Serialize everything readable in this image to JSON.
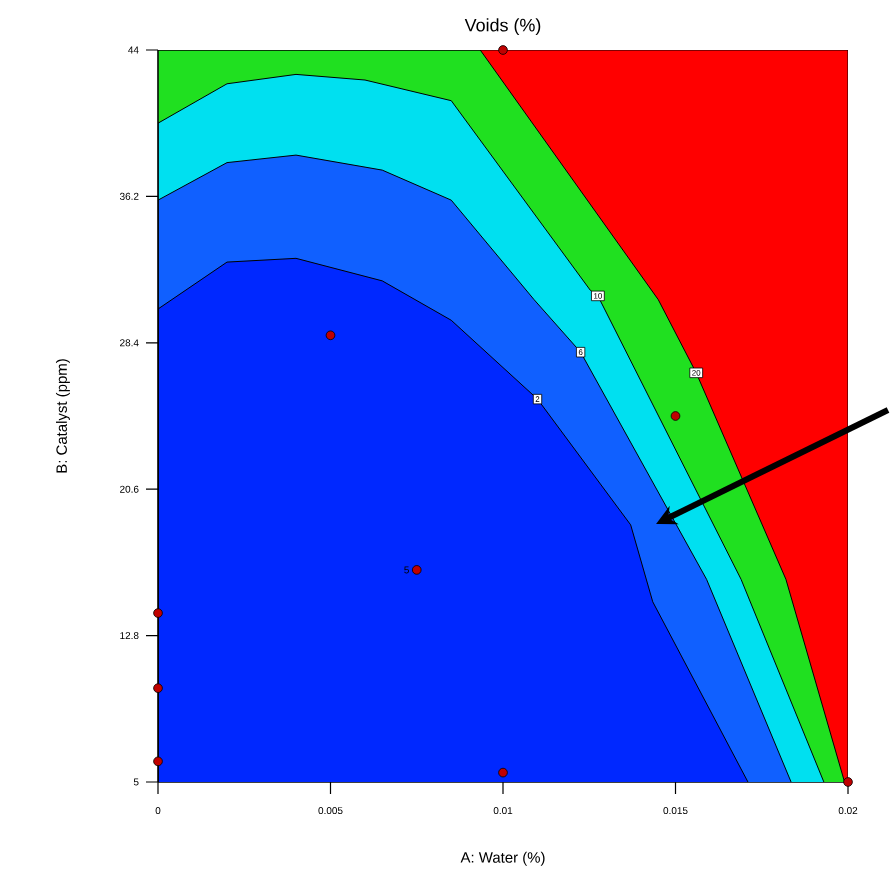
{
  "chart_data": {
    "type": "area",
    "title": "Voids (%)",
    "xlabel": "A: Water (%)",
    "ylabel": "B: Catalyst (ppm)",
    "xlim": [
      0,
      0.02
    ],
    "ylim": [
      5,
      44
    ],
    "xticks": [
      0,
      0.005,
      0.01,
      0.015,
      0.02
    ],
    "yticks": [
      5,
      12.8,
      20.6,
      28.4,
      36.2,
      44
    ],
    "grid": false,
    "series": [
      {
        "color": "#ff0000",
        "x": [
          0,
          0,
          0.02,
          0.02
        ],
        "values": [
          5,
          44,
          44,
          5
        ]
      },
      {
        "color": "#20e020",
        "x": [
          0,
          0,
          0.00934,
          0.0145,
          0.0156,
          0.0182,
          0.0199
        ],
        "values": [
          5,
          44,
          44,
          30.7,
          26.8,
          15.8,
          5
        ]
      },
      {
        "color": "#00e0f0",
        "x": [
          0,
          0,
          0.002,
          0.004,
          0.006,
          0.0085,
          0.01253,
          0.01275,
          0.0169,
          0.0193
        ],
        "values": [
          5,
          40.1,
          42.2,
          42.7,
          42.4,
          41.3,
          31.2,
          30.9,
          15.8,
          5
        ]
      },
      {
        "color": "#1060ff",
        "x": [
          0,
          0,
          0.002,
          0.004,
          0.0065,
          0.0085,
          0.0109,
          0.01225,
          0.0159,
          0.01835
        ],
        "values": [
          5,
          36.0,
          38.0,
          38.4,
          37.6,
          36.0,
          30.7,
          27.9,
          15.8,
          5
        ]
      },
      {
        "color": "#0028ff",
        "x": [
          0,
          0,
          0.002,
          0.004,
          0.0065,
          0.0085,
          0.011,
          0.0137,
          0.01434,
          0.0171
        ],
        "values": [
          5,
          30.2,
          32.7,
          32.9,
          31.7,
          29.6,
          25.4,
          18.7,
          14.6,
          5
        ]
      },
      {
        "type": "scatter",
        "color": "#c00000",
        "marker": "circle",
        "x": [
          0.01,
          0.005,
          0.0075,
          0.015,
          0,
          0,
          0,
          0.01,
          0.02
        ],
        "values": [
          44,
          28.8,
          16.3,
          24.5,
          14.0,
          10.0,
          6.1,
          5.5,
          5
        ]
      }
    ],
    "annotations": [
      {
        "text": "2",
        "x": 0.011,
        "y": 25.4
      },
      {
        "text": "6",
        "x": 0.01225,
        "y": 27.9
      },
      {
        "text": "10",
        "x": 0.01275,
        "y": 30.9
      },
      {
        "text": "20",
        "x": 0.0156,
        "y": 26.8
      },
      {
        "text": "5",
        "x": 0.0075,
        "y": 16.3
      }
    ]
  }
}
